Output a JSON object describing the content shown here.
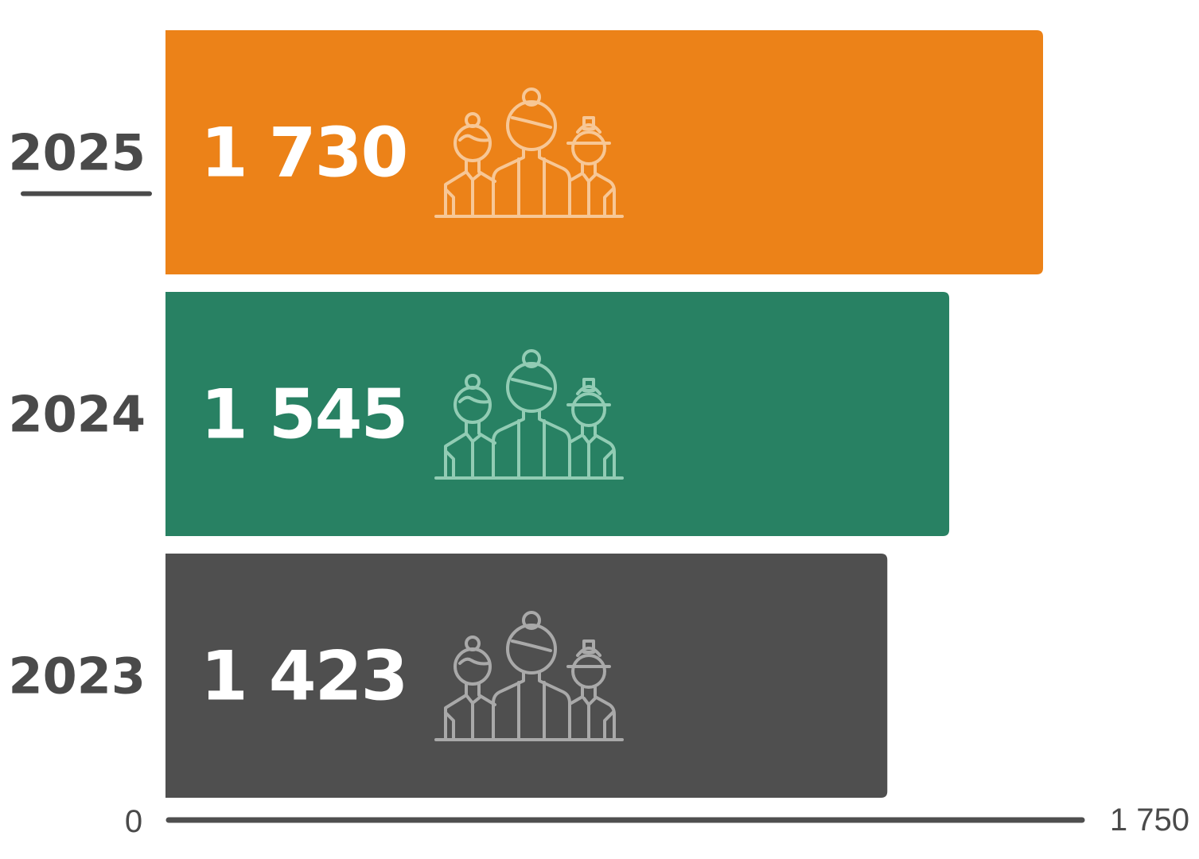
{
  "chart_data": {
    "type": "bar",
    "orientation": "horizontal",
    "categories": [
      "2025",
      "2024",
      "2023"
    ],
    "values": [
      1730,
      1545,
      1423
    ],
    "value_labels": [
      "1 730",
      "1 545",
      "1 423"
    ],
    "highlighted_category": "2025",
    "colors": [
      "#EC8218",
      "#288163",
      "#4F4F4F"
    ],
    "icon_colors": [
      "#F7C796",
      "#92CCB4",
      "#A9A9A9"
    ],
    "icon": "people-group-icon",
    "xlim": [
      0,
      1750
    ],
    "x_tick_labels": [
      "0",
      "1 750"
    ],
    "grid": false,
    "axis_color": "#4F4F4F",
    "label_color": "#4A4A4A"
  }
}
